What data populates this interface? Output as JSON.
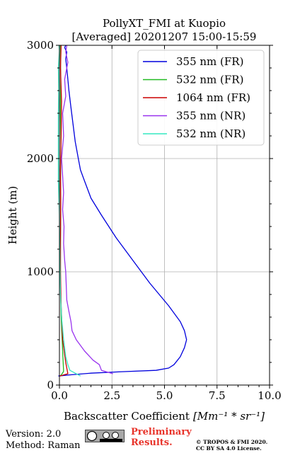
{
  "chart_data": {
    "type": "line",
    "title": "PollyXT_FMI at Kuopio",
    "subtitle": "[Averaged] 20201207 15:00-15:59",
    "xlabel": "Backscatter Coefficient",
    "xlabel_unit": "[Mm⁻¹ * sr⁻¹]",
    "ylabel": "Height (m)",
    "xlim": [
      0,
      10
    ],
    "ylim": [
      0,
      3000
    ],
    "xticks": [
      0,
      2.5,
      5,
      7.5,
      10
    ],
    "xtick_labels": [
      "0.0",
      "2.5",
      "5.0",
      "7.5",
      "10.0"
    ],
    "yticks": [
      0,
      1000,
      2000,
      3000
    ],
    "ytick_labels": [
      "0",
      "1000",
      "2000",
      "3000"
    ],
    "grid": true,
    "legend_position": "top-right",
    "series": [
      {
        "name": "355 nm (FR)",
        "color": "#0000dd",
        "x": [
          -0.05,
          0.5,
          1.5,
          3.0,
          4.6,
          5.2,
          5.45,
          5.75,
          5.95,
          6.05,
          5.95,
          5.75,
          5.2,
          4.3,
          3.5,
          2.7,
          2.0,
          1.5,
          1.2,
          1.0,
          0.9,
          0.75,
          0.65,
          0.55,
          0.45,
          0.4,
          0.35,
          0.3,
          0.35,
          0.25,
          0.3
        ],
        "y": [
          80,
          90,
          105,
          118,
          130,
          150,
          180,
          250,
          330,
          400,
          480,
          560,
          700,
          900,
          1100,
          1300,
          1500,
          1650,
          1800,
          1900,
          2000,
          2150,
          2300,
          2450,
          2600,
          2700,
          2800,
          2880,
          2940,
          2980,
          3000
        ]
      },
      {
        "name": "532 nm (FR)",
        "color": "#22bb22",
        "x": [
          0.05,
          0.2,
          0.15,
          0.08,
          0.05,
          0.05,
          0.06,
          0.05,
          0.07,
          0.05,
          0.06,
          0.05,
          0.05
        ],
        "y": [
          80,
          120,
          300,
          600,
          900,
          1200,
          1500,
          1800,
          2100,
          2400,
          2700,
          2900,
          3000
        ]
      },
      {
        "name": "1064 nm (FR)",
        "color": "#cc0000",
        "x": [
          0.02,
          0.4,
          0.3,
          0.15,
          0.08,
          0.05,
          0.05,
          0.06,
          0.05,
          0.08,
          0.1,
          0.05,
          0.08
        ],
        "y": [
          80,
          100,
          200,
          400,
          700,
          1000,
          1300,
          1600,
          1900,
          2200,
          2500,
          2800,
          3000
        ]
      },
      {
        "name": "355 nm (NR)",
        "color": "#9933ee",
        "x": [
          2.55,
          2.0,
          1.9,
          1.6,
          1.2,
          0.8,
          0.6,
          0.55,
          0.45,
          0.35,
          0.32,
          0.3,
          0.25,
          0.2,
          0.22,
          0.15,
          0.2,
          0.15,
          0.1,
          0.2,
          0.15,
          0.3,
          0.25,
          0.4,
          0.3,
          0.35
        ],
        "y": [
          100,
          130,
          180,
          220,
          300,
          400,
          480,
          560,
          650,
          750,
          900,
          1000,
          1100,
          1250,
          1400,
          1550,
          1700,
          1850,
          2000,
          2200,
          2400,
          2550,
          2700,
          2850,
          2940,
          3000
        ]
      },
      {
        "name": "532 nm (NR)",
        "color": "#33e8c0",
        "x": [
          1.0,
          0.5,
          0.4,
          0.3,
          0.2,
          0.1,
          0.05,
          0.03,
          0.02,
          0.0,
          -0.05,
          -0.05,
          -0.05,
          -0.03,
          -0.05,
          0.0,
          -0.02
        ],
        "y": [
          80,
          130,
          180,
          250,
          400,
          600,
          800,
          1000,
          1200,
          1500,
          1800,
          2100,
          2400,
          2600,
          2800,
          2950,
          3000
        ]
      }
    ]
  },
  "footer": {
    "version": "Version: 2.0",
    "method": "Method: Raman",
    "preliminary_line1": "Preliminary",
    "preliminary_line2": "Results.",
    "copyright_line1": "© TROPOS & FMI 2020.",
    "copyright_line2": "CC BY SA 4.0 License."
  }
}
